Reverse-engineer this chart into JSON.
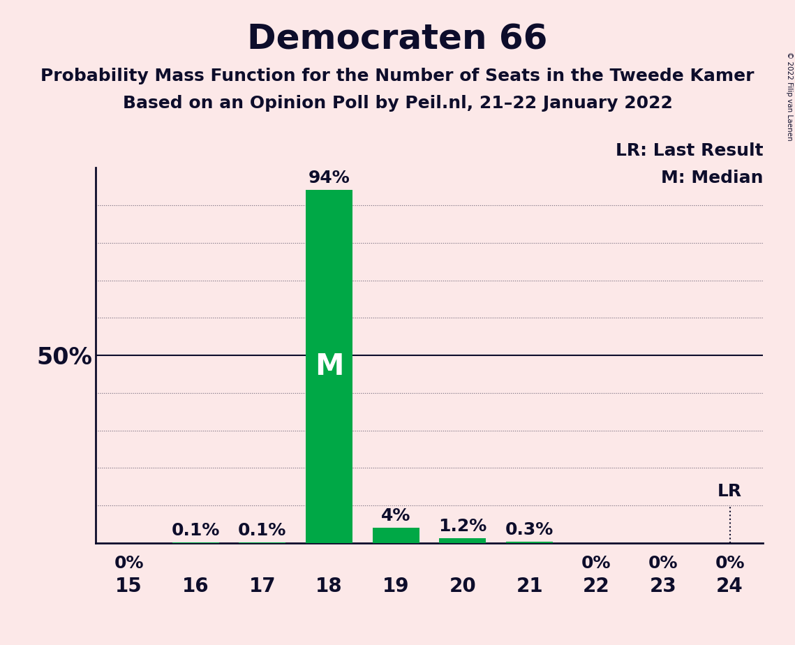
{
  "title": "Democraten 66",
  "subtitle1": "Probability Mass Function for the Number of Seats in the Tweede Kamer",
  "subtitle2": "Based on an Opinion Poll by Peil.nl, 21–22 January 2022",
  "copyright": "© 2022 Filip van Laenen",
  "seats": [
    15,
    16,
    17,
    18,
    19,
    20,
    21,
    22,
    23,
    24
  ],
  "probabilities": [
    0.0,
    0.1,
    0.1,
    94.0,
    4.0,
    1.2,
    0.3,
    0.0,
    0.0,
    0.0
  ],
  "bar_labels": [
    "0%",
    "0.1%",
    "0.1%",
    "94%",
    "4%",
    "1.2%",
    "0.3%",
    "0%",
    "0%",
    "0%"
  ],
  "bar_color": "#00a846",
  "background_color": "#fce8e8",
  "median_seat": 18,
  "last_result_seat": 24,
  "legend_lr": "LR: Last Result",
  "legend_m": "M: Median",
  "text_color": "#0d0d2b",
  "title_fontsize": 36,
  "subtitle_fontsize": 18,
  "annotation_fontsize": 18,
  "tick_fontsize": 20,
  "ytick_fontsize": 24,
  "m_fontsize": 30
}
